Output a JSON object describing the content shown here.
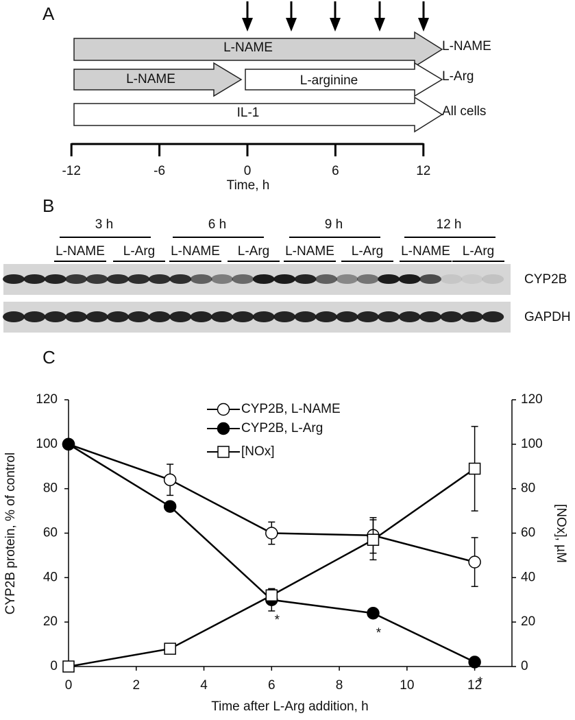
{
  "panel_a": {
    "label": "A",
    "rows": [
      {
        "segments": [
          "L-NAME"
        ],
        "name": "L-NAME"
      },
      {
        "segments": [
          "L-NAME",
          "L-arginine"
        ],
        "name": "L-Arg"
      },
      {
        "segments": [
          "IL-1"
        ],
        "name": "All cells"
      }
    ],
    "axis_ticks": [
      -12,
      -6,
      0,
      6,
      12
    ],
    "axis_title": "Time, h"
  },
  "panel_b": {
    "label": "B",
    "times": [
      "3 h",
      "6 h",
      "9 h",
      "12 h"
    ],
    "lanes": [
      "L-NAME",
      "L-Arg",
      "L-NAME",
      "L-Arg",
      "L-NAME",
      "L-Arg",
      "L-NAME",
      "L-Arg"
    ],
    "blots": [
      "CYP2B",
      "GAPDH"
    ]
  },
  "chart_data": {
    "type": "line",
    "panel_label": "C",
    "x_label": "Time after L-Arg addition, h",
    "y_label": "CYP2B protein, % of control",
    "y2_label": "[NOx], µM",
    "x": [
      0,
      3,
      6,
      9,
      12
    ],
    "xlim": [
      0,
      13
    ],
    "xticks": [
      0,
      2,
      4,
      6,
      8,
      10,
      12
    ],
    "ylim": [
      0,
      120
    ],
    "yticks": [
      0,
      20,
      40,
      60,
      80,
      100,
      120
    ],
    "y2lim": [
      0,
      120
    ],
    "y2ticks": [
      0,
      20,
      40,
      60,
      80,
      100,
      120
    ],
    "series": [
      {
        "name": "CYP2B, L-NAME",
        "color": "#000000",
        "marker": "open-circle",
        "values": [
          100,
          84,
          60,
          59,
          47
        ],
        "errors": [
          null,
          7,
          5,
          8,
          11
        ]
      },
      {
        "name": "CYP2B, L-Arg",
        "color": "#000000",
        "marker": "filled-circle",
        "values": [
          100,
          72,
          30,
          24,
          2
        ],
        "errors": [
          null,
          2,
          5,
          null,
          null
        ],
        "value_annotations": [
          null,
          null,
          "*",
          "*",
          "*"
        ]
      },
      {
        "name": "[NOx]",
        "color": "#000000",
        "marker": "open-square",
        "axis": "y2",
        "values": [
          0,
          8,
          32,
          57,
          89
        ],
        "errors": [
          null,
          2,
          3,
          9,
          19
        ]
      }
    ]
  }
}
